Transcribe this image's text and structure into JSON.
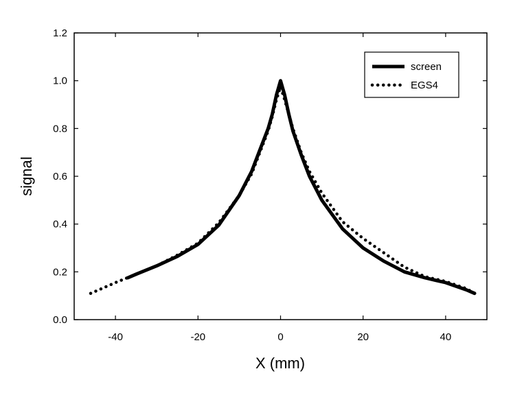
{
  "chart_data": {
    "type": "line",
    "xlabel": "X (mm)",
    "ylabel": "signal",
    "xlim": [
      -50,
      50
    ],
    "ylim": [
      0.0,
      1.2
    ],
    "x_ticks": [
      -40,
      -20,
      0,
      20,
      40
    ],
    "x_tick_labels": [
      "-40",
      "-20",
      "0",
      "20",
      "40"
    ],
    "y_ticks": [
      0.0,
      0.2,
      0.4,
      0.6,
      0.8,
      1.0,
      1.2
    ],
    "y_tick_labels": [
      "0.0",
      "0.2",
      "0.4",
      "0.6",
      "0.8",
      "1.0",
      "1.2"
    ],
    "grid": false,
    "legend_position": "top-right",
    "series": [
      {
        "name": "screen",
        "style": "solid",
        "color": "#000000",
        "x": [
          -37,
          -35,
          -30,
          -25,
          -20,
          -15,
          -10,
          -7,
          -5,
          -3,
          -2,
          -1,
          0,
          1,
          2,
          3,
          5,
          7,
          10,
          15,
          20,
          25,
          30,
          35,
          40,
          45,
          47
        ],
        "y": [
          0.175,
          0.19,
          0.225,
          0.265,
          0.315,
          0.395,
          0.52,
          0.62,
          0.71,
          0.8,
          0.86,
          0.94,
          1.0,
          0.94,
          0.86,
          0.79,
          0.69,
          0.6,
          0.5,
          0.38,
          0.3,
          0.245,
          0.2,
          0.175,
          0.155,
          0.125,
          0.11
        ]
      },
      {
        "name": "EGS4",
        "style": "dotted",
        "color": "#000000",
        "x": [
          -46,
          -44,
          -40,
          -35,
          -30,
          -25,
          -20,
          -15,
          -10,
          -7,
          -5,
          -3,
          -2,
          -1,
          0,
          1,
          2,
          3,
          5,
          7,
          10,
          15,
          20,
          25,
          30,
          35,
          40,
          45,
          47
        ],
        "y": [
          0.11,
          0.125,
          0.155,
          0.19,
          0.225,
          0.27,
          0.32,
          0.405,
          0.52,
          0.61,
          0.7,
          0.79,
          0.85,
          0.92,
          0.975,
          0.92,
          0.86,
          0.8,
          0.7,
          0.62,
          0.53,
          0.41,
          0.34,
          0.28,
          0.22,
          0.18,
          0.16,
          0.13,
          0.11
        ]
      }
    ]
  }
}
